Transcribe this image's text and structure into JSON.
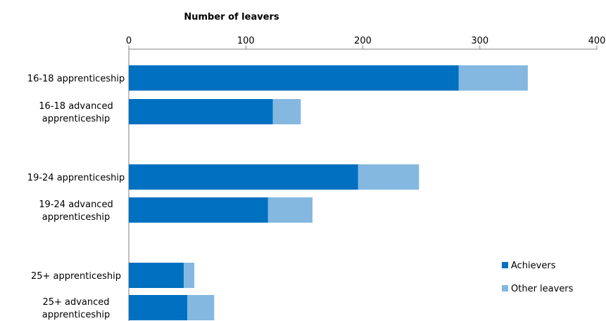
{
  "chart_data": {
    "type": "bar",
    "orientation": "horizontal",
    "stacked": true,
    "xlabel": "Number of leavers",
    "xlim": [
      0,
      400
    ],
    "x_ticks": [
      0,
      100,
      200,
      300,
      400
    ],
    "grid": false,
    "legend_position": "bottom-right",
    "categories": [
      [
        "16-18 apprenticeship"
      ],
      [
        "16-18 advanced",
        "apprenticeship"
      ],
      [
        "19-24 apprenticeship"
      ],
      [
        "19-24 advanced",
        "apprenticeship"
      ],
      [
        "25+ apprenticeship"
      ],
      [
        "25+ advanced",
        "apprenticeship"
      ]
    ],
    "series": [
      {
        "name": "Achievers",
        "color": "#0070c0",
        "values": [
          282,
          123,
          196,
          119,
          47,
          50
        ]
      },
      {
        "name": "Other leavers",
        "color": "#84b8e0",
        "values": [
          59,
          24,
          52,
          38,
          9,
          23
        ]
      }
    ]
  }
}
